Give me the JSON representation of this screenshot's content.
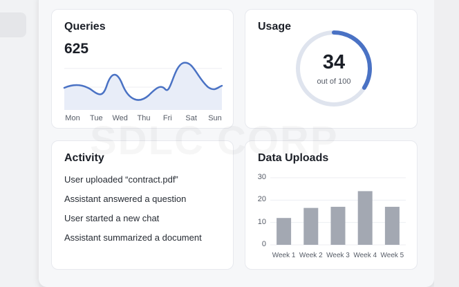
{
  "watermark": "SDLC CORP",
  "queries": {
    "title": "Queries",
    "value": "625",
    "days": [
      "Mon",
      "Tue",
      "Wed",
      "Thu",
      "Fri",
      "Sat",
      "Sun"
    ],
    "line_color": "#4a72c4"
  },
  "usage": {
    "title": "Usage",
    "value": "34",
    "subtitle": "out of 100",
    "progress": 0.34,
    "accent": "#4a72c4"
  },
  "activity": {
    "title": "Activity",
    "items": [
      "User uploaded “contract.pdf”",
      "Assistant answered a question",
      "User started a new chat",
      "Assistant summarized a document"
    ]
  },
  "uploads": {
    "title": "Data Uploads",
    "chart_data": {
      "type": "bar",
      "categories": [
        "Week 1",
        "Week 2",
        "Week 3",
        "Week 4",
        "Week 5"
      ],
      "values": [
        12,
        16.5,
        17,
        24,
        17
      ],
      "yticks": [
        0,
        10,
        20,
        30
      ],
      "ylim": [
        0,
        30
      ],
      "bar_color": "#a3a8b2"
    }
  }
}
